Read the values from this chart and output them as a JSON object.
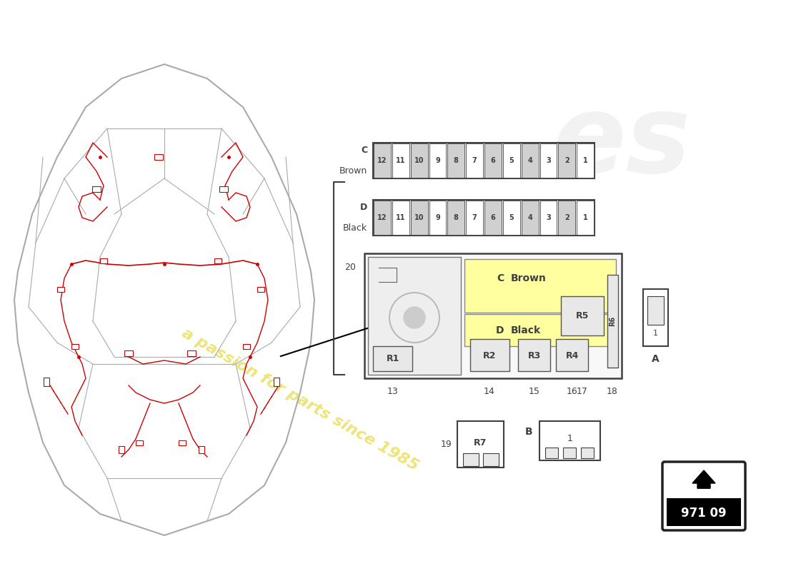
{
  "page_num": "971 09",
  "watermark_text": "a passion for parts since 1985",
  "bg_color": "#ffffff",
  "line_color": "#404040",
  "car_line_color": "#aaaaaa",
  "red_wiring_color": "#cc0000",
  "fuse_numbers": [
    12,
    11,
    10,
    9,
    8,
    7,
    6,
    5,
    4,
    3,
    2,
    1
  ],
  "relay_labels": [
    "R1",
    "R2",
    "R3",
    "R4",
    "R5",
    "R6"
  ],
  "relay_numbers_below": [
    "13",
    "14",
    "15",
    "16",
    "17",
    "18"
  ],
  "label_20": "20",
  "label_19": "19",
  "label_B": "B",
  "label_A": "A",
  "label_R7": "R7",
  "yellow_fill": "#ffffa0",
  "gray_fill": "#e8e8e8",
  "slot_alt_fill": "#d0d0d0"
}
